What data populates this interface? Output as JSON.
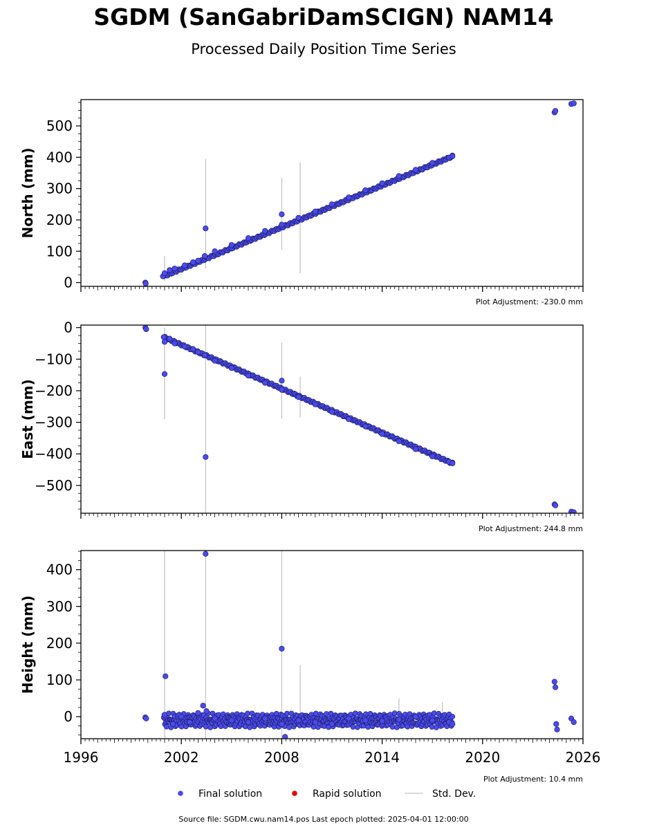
{
  "title": "SGDM (SanGabriDamSCIGN) NAM14",
  "subtitle": "Processed Daily Position Time Series",
  "footer": "Source file: SGDM.cwu.nam14.pos  Last epoch plotted: 2025-04-01 12:00:00",
  "legend": {
    "items": [
      {
        "label": "Final solution",
        "color": "#4a4af0",
        "kind": "marker"
      },
      {
        "label": "Rapid solution",
        "color": "#e00000",
        "kind": "marker"
      },
      {
        "label": "Std. Dev.",
        "color": "#cccccc",
        "kind": "line"
      }
    ]
  },
  "chart_data": [
    {
      "type": "scatter",
      "name": "north",
      "ylabel": "North (mm)",
      "adjustment": "Plot Adjustment: -230.0 mm",
      "xlim": [
        1996,
        2026
      ],
      "ylim": [
        -12,
        584
      ],
      "yticks": [
        0,
        100,
        200,
        300,
        400,
        500
      ],
      "yticklabels": [
        "0",
        "100",
        "200",
        "300",
        "400",
        "500"
      ],
      "trend": {
        "x": [
          2000.95,
          2018.2
        ],
        "y": [
          20,
          403
        ]
      },
      "x": [
        1999.85,
        1999.87,
        2000.9,
        2001.0,
        2001.3,
        2001.6,
        2002.2,
        2002.7,
        2003.0,
        2003.4,
        2004.0,
        2005.0,
        2006.0,
        2007.0,
        2008.0,
        2009.0,
        2010.0,
        2011.0,
        2012.0,
        2013.0,
        2014.0,
        2015.0,
        2016.0,
        2017.0,
        2018.0,
        2018.2,
        2003.45,
        2008.0,
        2024.3,
        2024.35,
        2025.3,
        2025.45
      ],
      "y": [
        0,
        -3,
        20,
        30,
        40,
        45,
        55,
        65,
        70,
        85,
        100,
        120,
        142,
        165,
        185,
        207,
        227,
        250,
        272,
        295,
        317,
        340,
        360,
        382,
        399,
        403,
        173,
        218,
        543,
        548,
        570,
        572
      ],
      "errorbars": [
        {
          "x": 2001.0,
          "low": 5,
          "high": 85
        },
        {
          "x": 2003.45,
          "low": 45,
          "high": 395
        },
        {
          "x": 2008.0,
          "low": 105,
          "high": 335
        },
        {
          "x": 2009.1,
          "low": 30,
          "high": 383
        }
      ]
    },
    {
      "type": "scatter",
      "name": "east",
      "ylabel": "East (mm)",
      "adjustment": "Plot Adjustment: 244.8 mm",
      "xlim": [
        1996,
        2026
      ],
      "ylim": [
        -588,
        8
      ],
      "yticks": [
        0,
        -100,
        -200,
        -300,
        -400,
        -500
      ],
      "yticklabels": [
        "0",
        "−100",
        "−200",
        "−300",
        "−400",
        "−500"
      ],
      "trend": {
        "x": [
          2000.95,
          2018.2
        ],
        "y": [
          -30,
          -430
        ]
      },
      "x": [
        1999.85,
        1999.9,
        2000.95,
        2001.0,
        2001.3,
        2001.6,
        2002.2,
        2002.7,
        2003.0,
        2003.4,
        2004.0,
        2005.0,
        2006.0,
        2007.0,
        2008.0,
        2009.0,
        2010.0,
        2011.0,
        2012.0,
        2013.0,
        2014.0,
        2015.0,
        2016.0,
        2017.0,
        2018.0,
        2018.2,
        2001.0,
        2003.45,
        2008.0,
        2024.3,
        2024.35,
        2025.3,
        2025.45
      ],
      "y": [
        0,
        -5,
        -30,
        -45,
        -35,
        -50,
        -60,
        -68,
        -78,
        -88,
        -105,
        -128,
        -152,
        -175,
        -197,
        -220,
        -243,
        -267,
        -290,
        -313,
        -337,
        -360,
        -385,
        -408,
        -425,
        -430,
        -147,
        -410,
        -168,
        -560,
        -563,
        -583,
        -585
      ],
      "errorbars": [
        {
          "x": 2001.0,
          "low": -290,
          "high": 0
        },
        {
          "x": 2003.45,
          "low": -588,
          "high": 8
        },
        {
          "x": 2008.0,
          "low": -288,
          "high": -48
        },
        {
          "x": 2009.1,
          "low": -285,
          "high": -155
        }
      ]
    },
    {
      "type": "scatter",
      "name": "height",
      "ylabel": "Height (mm)",
      "adjustment": "Plot Adjustment: 10.4 mm",
      "xlim": [
        1996,
        2026
      ],
      "ylim": [
        -60,
        452
      ],
      "xticks": [
        1996,
        2002,
        2008,
        2014,
        2020,
        2026
      ],
      "xticklabels": [
        "1996",
        "2002",
        "2008",
        "2014",
        "2020",
        "2026"
      ],
      "yticks": [
        0,
        100,
        200,
        300,
        400
      ],
      "yticklabels": [
        "0",
        "100",
        "200",
        "300",
        "400"
      ],
      "band": {
        "x": [
          2000.95,
          2018.2
        ],
        "y_center": -10,
        "half_width": 15
      },
      "x": [
        1999.85,
        1999.9,
        2001.0,
        2001.5,
        2002.0,
        2002.5,
        2003.0,
        2003.3,
        2003.5,
        2004.0,
        2005.0,
        2006.0,
        2007.0,
        2008.0,
        2009.0,
        2010.0,
        2011.0,
        2012.0,
        2013.0,
        2014.0,
        2015.0,
        2016.0,
        2017.0,
        2018.0,
        2018.2,
        2001.05,
        2003.45,
        2008.0,
        2008.2,
        2024.3,
        2024.35,
        2024.4,
        2024.45,
        2025.3,
        2025.45
      ],
      "y": [
        -2,
        -5,
        5,
        -20,
        0,
        -15,
        10,
        30,
        15,
        -5,
        -10,
        -15,
        -5,
        -20,
        -10,
        -15,
        -20,
        -5,
        -10,
        -12,
        -8,
        0,
        -10,
        -15,
        -20,
        110,
        443,
        185,
        -55,
        95,
        80,
        -20,
        -35,
        -5,
        -15
      ],
      "errorbars": [
        {
          "x": 2001.0,
          "low": -60,
          "high": 452
        },
        {
          "x": 2003.45,
          "low": -60,
          "high": 452
        },
        {
          "x": 2008.0,
          "low": -60,
          "high": 452
        },
        {
          "x": 2009.1,
          "low": -30,
          "high": 140
        },
        {
          "x": 2015.0,
          "low": -30,
          "high": 50
        },
        {
          "x": 2017.6,
          "low": -30,
          "high": 40
        }
      ]
    }
  ]
}
